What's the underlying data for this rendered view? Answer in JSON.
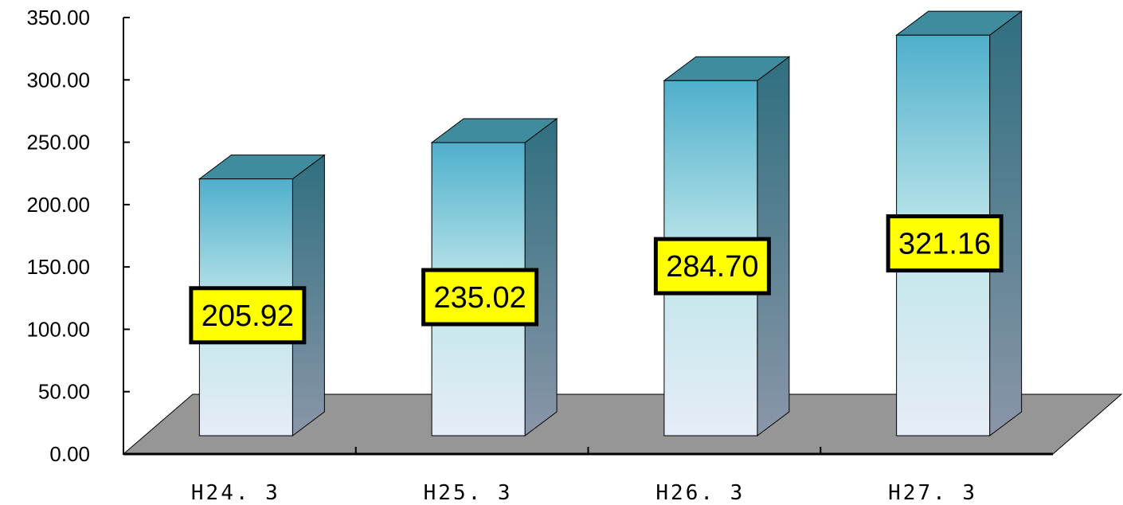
{
  "chart_data": {
    "type": "bar",
    "style": "3d-column",
    "categories": [
      "H24. 3",
      "H25. 3",
      "H26. 3",
      "H27. 3"
    ],
    "values": [
      205.92,
      235.02,
      284.7,
      321.16
    ],
    "data_labels": [
      "205.92",
      "235.02",
      "284.70",
      "321.16"
    ],
    "y_tick_labels": [
      "0.00",
      "50.00",
      "100.00",
      "150.00",
      "200.00",
      "250.00",
      "300.00",
      "350.00"
    ],
    "ylim": [
      0,
      350
    ],
    "title": "",
    "xlabel": "",
    "ylabel": "",
    "grid": false,
    "legend": false,
    "colors": {
      "bar_top_face": "#3f8c9e",
      "bar_front_top": "#4fafcc",
      "bar_front_bottom": "#e6ecf7",
      "bar_side_top": "#2f6f80",
      "bar_side_bottom": "#8a96a8",
      "floor": "#969696",
      "axis": "#000000",
      "data_label_background": "#ffff00"
    }
  }
}
